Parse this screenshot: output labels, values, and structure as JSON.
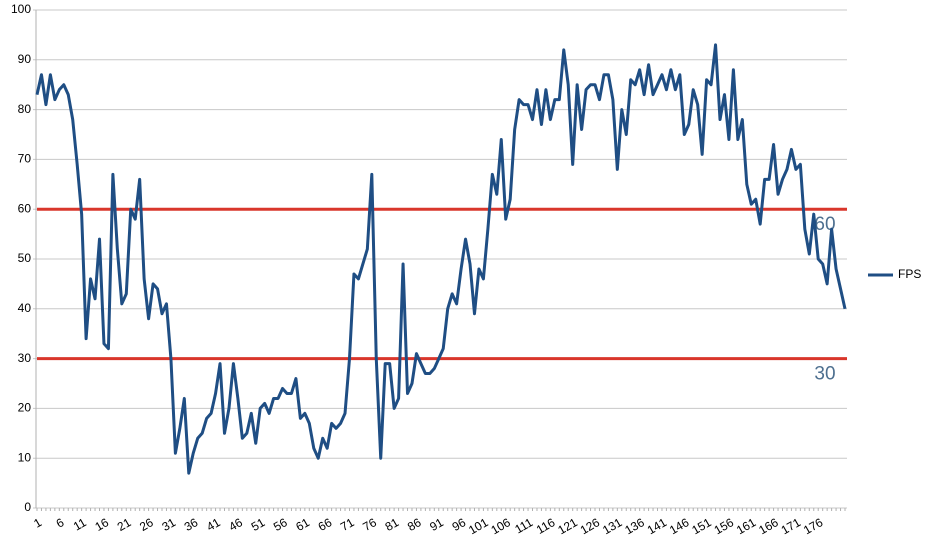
{
  "chart_data": {
    "type": "line",
    "categories": [
      "1",
      null,
      null,
      null,
      null,
      "6",
      null,
      null,
      null,
      null,
      "11",
      null,
      null,
      null,
      null,
      "16",
      null,
      null,
      null,
      null,
      "21",
      null,
      null,
      null,
      null,
      "26",
      null,
      null,
      null,
      null,
      "31",
      null,
      null,
      null,
      null,
      "36",
      null,
      null,
      null,
      null,
      "41",
      null,
      null,
      null,
      null,
      "46",
      null,
      null,
      null,
      null,
      "51",
      null,
      null,
      null,
      null,
      "56",
      null,
      null,
      null,
      null,
      "61",
      null,
      null,
      null,
      null,
      "66",
      null,
      null,
      null,
      null,
      "71",
      null,
      null,
      null,
      null,
      "76",
      null,
      null,
      null,
      null,
      "81",
      null,
      null,
      null,
      null,
      "86",
      null,
      null,
      null,
      null,
      "91",
      null,
      null,
      null,
      null,
      "96",
      null,
      null,
      null,
      null,
      "101",
      null,
      null,
      null,
      null,
      "106",
      null,
      null,
      null,
      null,
      "111",
      null,
      null,
      null,
      null,
      "116",
      null,
      null,
      null,
      null,
      "121",
      null,
      null,
      null,
      null,
      "126",
      null,
      null,
      null,
      null,
      "131",
      null,
      null,
      null,
      null,
      "136",
      null,
      null,
      null,
      null,
      "141",
      null,
      null,
      null,
      null,
      "146",
      null,
      null,
      null,
      null,
      "151",
      null,
      null,
      null,
      null,
      "156",
      null,
      null,
      null,
      null,
      "161",
      null,
      null,
      null,
      null,
      "166",
      null,
      null,
      null,
      null,
      "171",
      null,
      null,
      null,
      null,
      "176",
      null,
      null,
      null,
      null,
      null,
      null
    ],
    "series": [
      {
        "name": "FPS",
        "color": "#1f4e84",
        "values": [
          83,
          87,
          81,
          87,
          82,
          84,
          85,
          83,
          78,
          69,
          59,
          34,
          46,
          42,
          54,
          33,
          32,
          67,
          52,
          41,
          43,
          60,
          58,
          66,
          46,
          38,
          45,
          44,
          39,
          41,
          30,
          11,
          16,
          22,
          7,
          11,
          14,
          15,
          18,
          19,
          23,
          29,
          15,
          20,
          29,
          22,
          14,
          15,
          19,
          13,
          20,
          21,
          19,
          22,
          22,
          24,
          23,
          23,
          26,
          18,
          19,
          17,
          12,
          10,
          14,
          12,
          17,
          16,
          17,
          19,
          30,
          47,
          46,
          49,
          52,
          67,
          30,
          10,
          29,
          29,
          20,
          22,
          49,
          23,
          25,
          31,
          29,
          27,
          27,
          28,
          30,
          32,
          40,
          43,
          41,
          48,
          54,
          49,
          39,
          48,
          46,
          56,
          67,
          63,
          74,
          58,
          62,
          76,
          82,
          81,
          81,
          78,
          84,
          77,
          84,
          78,
          82,
          82,
          92,
          85,
          69,
          85,
          76,
          84,
          85,
          85,
          82,
          87,
          87,
          82,
          68,
          80,
          75,
          86,
          85,
          88,
          83,
          89,
          83,
          85,
          87,
          84,
          88,
          84,
          87,
          75,
          77,
          84,
          81,
          71,
          86,
          85,
          93,
          78,
          83,
          74,
          88,
          74,
          78,
          65,
          61,
          62,
          57,
          66,
          66,
          73,
          63,
          66,
          68,
          72,
          68,
          69,
          56,
          51,
          59,
          50,
          49,
          45,
          56,
          48,
          44,
          40
        ]
      }
    ],
    "reference_lines": [
      {
        "value": 60,
        "label": "60",
        "color": "#d9362b"
      },
      {
        "value": 30,
        "label": "30",
        "color": "#d9362b"
      }
    ],
    "ylim": [
      0,
      100
    ],
    "yticks": [
      0,
      10,
      20,
      30,
      40,
      50,
      60,
      70,
      80,
      90,
      100
    ],
    "grid": true,
    "legend": "right"
  }
}
